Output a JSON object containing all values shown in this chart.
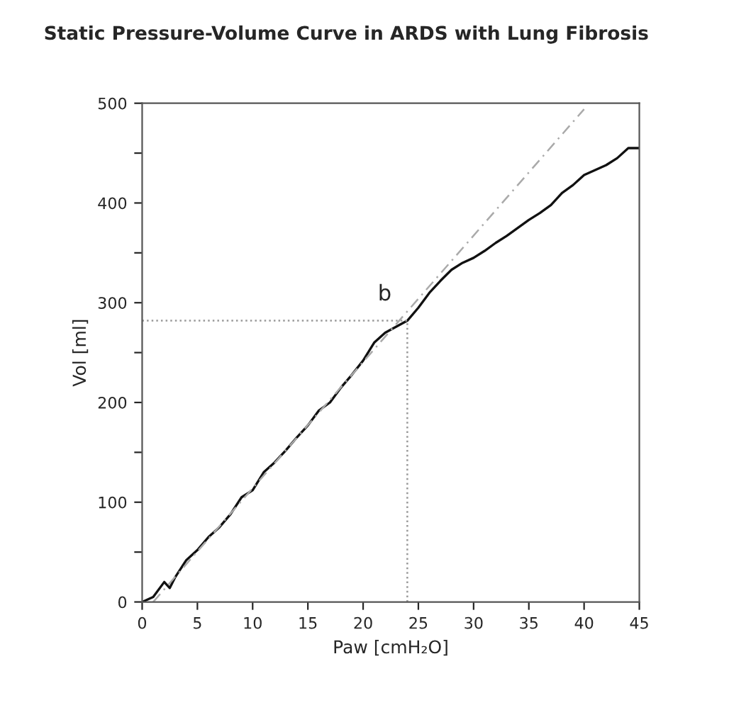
{
  "chart_data": {
    "type": "line",
    "title": "Static Pressure-Volume Curve in ARDS with Lung Fibrosis",
    "xlabel": "Paw [cmH₂O]",
    "ylabel": "Vol [ml]",
    "series": [
      {
        "color": "#111111",
        "line_style": "solid",
        "x": [
          0,
          1,
          2,
          2.5,
          3,
          4,
          5,
          6,
          7,
          8,
          9,
          10,
          11,
          12,
          13,
          14,
          15,
          16,
          17,
          18,
          19,
          20,
          21,
          22,
          23,
          24,
          25,
          26,
          27,
          28,
          29,
          30,
          31,
          32,
          33,
          34,
          35,
          36,
          37,
          38,
          39,
          40,
          41,
          42,
          43,
          44,
          45
        ],
        "values": [
          0,
          5,
          20,
          14,
          25,
          42,
          52,
          65,
          75,
          88,
          105,
          112,
          130,
          140,
          152,
          165,
          177,
          192,
          200,
          215,
          228,
          242,
          260,
          270,
          276,
          282,
          295,
          310,
          322,
          333,
          340,
          345,
          352,
          360,
          367,
          375,
          383,
          390,
          398,
          410,
          418,
          428,
          433,
          438,
          445,
          455,
          455
        ]
      },
      {
        "color": "#aaaaaa",
        "line_style": "dashed",
        "x": [
          1,
          40
        ],
        "values": [
          0,
          494
        ]
      },
      {
        "color": "#999999",
        "line_style": "dotted",
        "x": [
          0,
          24
        ],
        "values": [
          282,
          282
        ]
      },
      {
        "color": "#999999",
        "line_style": "dotted",
        "x": [
          24,
          24
        ],
        "values": [
          0,
          282
        ]
      }
    ],
    "annotations": [
      {
        "text": "b",
        "x": 24,
        "y": 282
      }
    ],
    "xlim": [
      0,
      45
    ],
    "xticks": [
      0,
      5,
      10,
      15,
      20,
      25,
      30,
      35,
      40,
      45
    ],
    "ylim": [
      0,
      500
    ],
    "yticks": [
      0,
      {
        "value": 50,
        "label": null
      },
      100,
      {
        "value": 150,
        "label": null
      },
      200,
      {
        "value": 250,
        "label": null
      },
      300,
      {
        "value": 350,
        "label": null
      },
      400,
      {
        "value": 450,
        "label": null
      },
      500
    ],
    "grid": false,
    "legend": false
  }
}
